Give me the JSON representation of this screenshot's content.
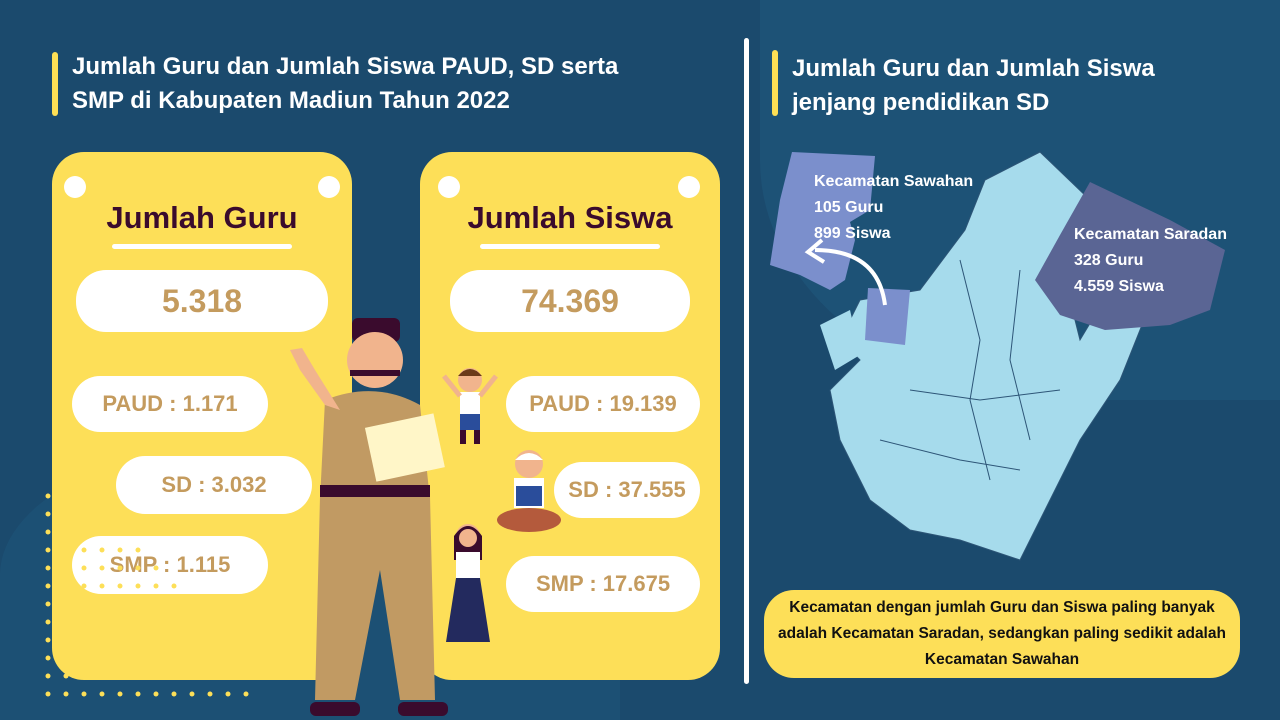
{
  "left": {
    "title_line1": "Jumlah Guru dan Jumlah Siswa PAUD, SD serta",
    "title_line2": "SMP di Kabupaten Madiun Tahun 2022",
    "guru": {
      "heading": "Jumlah Guru",
      "total": "5.318",
      "paud": "PAUD : 1.171",
      "sd": "SD : 3.032",
      "smp": "SMP : 1.115"
    },
    "siswa": {
      "heading": "Jumlah Siswa",
      "total": "74.369",
      "paud": "PAUD : 19.139",
      "sd": "SD : 37.555",
      "smp": "SMP : 17.675"
    }
  },
  "right": {
    "title_line1": "Jumlah Guru dan Jumlah Siswa",
    "title_line2": "jenjang pendidikan SD",
    "sawahan": {
      "name": "Kecamatan Sawahan",
      "guru": "105 Guru",
      "siswa": "899 Siswa"
    },
    "saradan": {
      "name": "Kecamatan Saradan",
      "guru": "328 Guru",
      "siswa": "4.559 Siswa"
    },
    "note": "Kecamatan dengan jumlah Guru dan Siswa paling banyak adalah Kecamatan Saradan, sedangkan paling sedikit adalah Kecamatan Sawahan"
  },
  "colors": {
    "background": "#1b4a6d",
    "card": "#fddf58",
    "map_base": "#a6dbec",
    "sawahan": "#7b8fcc",
    "saradan": "#5a6594",
    "value_text": "#c49b5e"
  }
}
